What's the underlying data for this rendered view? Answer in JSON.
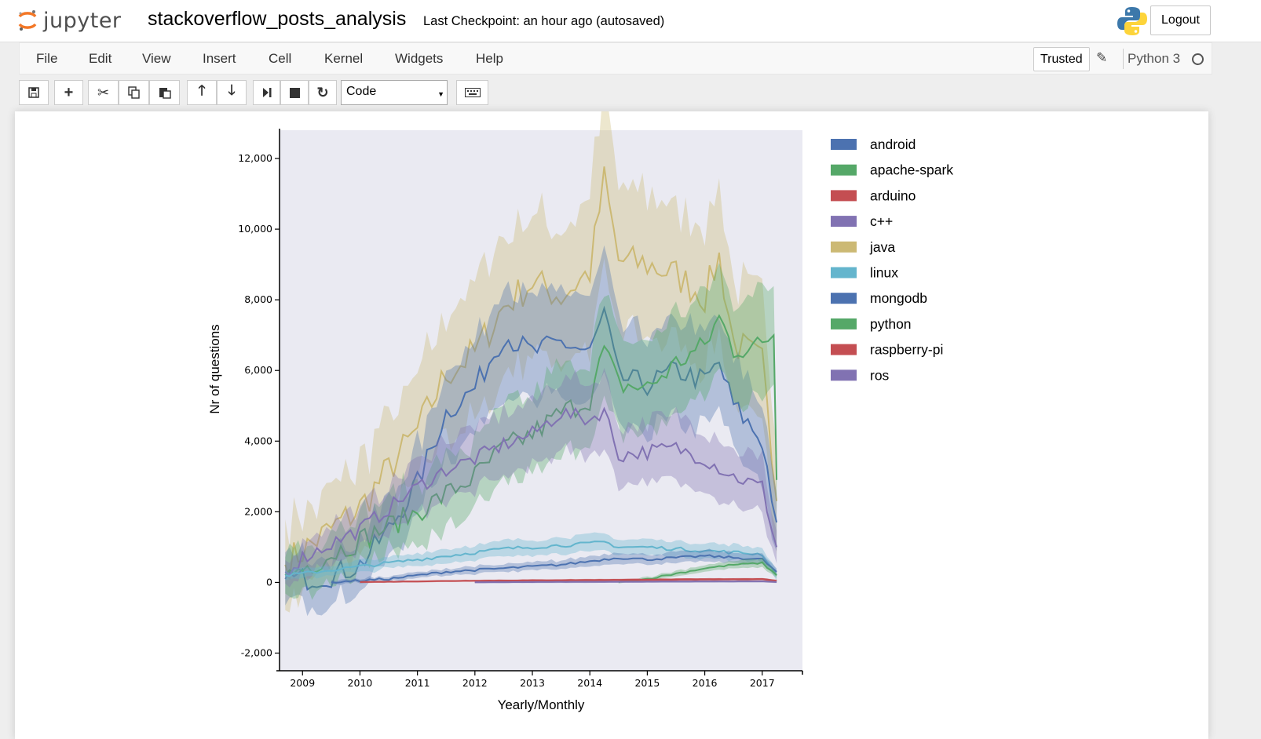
{
  "app": {
    "logo_text": "jupyter",
    "notebook_name": "stackoverflow_posts_analysis",
    "checkpoint": "Last Checkpoint: an hour ago (autosaved)",
    "logout_label": "Logout"
  },
  "menu": [
    "File",
    "Edit",
    "View",
    "Insert",
    "Cell",
    "Kernel",
    "Widgets",
    "Help"
  ],
  "kernel": {
    "trusted_label": "Trusted",
    "name": "Python 3"
  },
  "toolbar": {
    "cell_type": "Code",
    "buttons": [
      "save-icon",
      "plus-icon",
      "cut-icon",
      "copy-icon",
      "paste-icon",
      "arrow-up-icon",
      "arrow-down-icon",
      "run-icon",
      "stop-icon",
      "restart-icon",
      "keyboard-icon"
    ]
  },
  "chart_data": {
    "type": "line",
    "xlabel": "Yearly/Monthly",
    "ylabel": "Nr of questions",
    "x_ticks": [
      "2009",
      "2010",
      "2011",
      "2012",
      "2013",
      "2014",
      "2015",
      "2016",
      "2017"
    ],
    "y_ticks": [
      "-2,000",
      "0",
      "2,000",
      "4,000",
      "6,000",
      "8,000",
      "10,000",
      "12,000"
    ],
    "xlim": [
      2008.6,
      2017.7
    ],
    "ylim": [
      -2500,
      12800
    ],
    "legend_position": "right",
    "grid": false,
    "background": "#eaeaf2",
    "band": "confidence band shaded around each series",
    "series": [
      {
        "name": "android",
        "color": "#4c72b0",
        "x": [
          2008.7,
          2009.0,
          2009.5,
          2010.0,
          2010.5,
          2011.0,
          2011.5,
          2012.0,
          2012.5,
          2013.0,
          2013.5,
          2014.0,
          2014.25,
          2014.5,
          2015.0,
          2015.5,
          2016.0,
          2016.25,
          2016.5,
          2017.0,
          2017.25
        ],
        "y": [
          100,
          100,
          200,
          500,
          1500,
          2800,
          4800,
          5500,
          7000,
          6500,
          6800,
          6500,
          7600,
          5800,
          5600,
          6000,
          5700,
          6200,
          5000,
          4000,
          1700
        ]
      },
      {
        "name": "apache-spark",
        "color": "#55a868",
        "x": [
          2014.5,
          2015.0,
          2015.5,
          2016.0,
          2016.5,
          2017.0,
          2017.25
        ],
        "y": [
          10,
          100,
          250,
          400,
          500,
          550,
          200
        ]
      },
      {
        "name": "arduino",
        "color": "#c44e52",
        "x": [
          2010.0,
          2011.0,
          2012.0,
          2013.0,
          2014.0,
          2015.0,
          2016.0,
          2017.0,
          2017.25
        ],
        "y": [
          10,
          30,
          50,
          60,
          70,
          80,
          90,
          100,
          50
        ]
      },
      {
        "name": "c++",
        "color": "#8172b2",
        "x": [
          2008.7,
          2009.0,
          2009.5,
          2010.0,
          2010.5,
          2011.0,
          2011.5,
          2012.0,
          2012.5,
          2013.0,
          2013.5,
          2014.0,
          2014.25,
          2014.5,
          2015.0,
          2015.5,
          2016.0,
          2016.5,
          2017.0,
          2017.25
        ],
        "y": [
          300,
          700,
          1100,
          1500,
          2100,
          2700,
          3200,
          3500,
          3900,
          4200,
          4800,
          4600,
          4900,
          3600,
          3700,
          3800,
          3500,
          3000,
          2700,
          1000
        ]
      },
      {
        "name": "java",
        "color": "#ccb974",
        "x": [
          2008.7,
          2009.0,
          2009.5,
          2010.0,
          2010.5,
          2011.0,
          2011.5,
          2012.0,
          2012.5,
          2013.0,
          2013.5,
          2014.0,
          2014.25,
          2014.5,
          2015.0,
          2015.5,
          2016.0,
          2016.25,
          2016.5,
          2017.0,
          2017.25
        ],
        "y": [
          500,
          900,
          1500,
          2100,
          3200,
          4300,
          5900,
          6500,
          7800,
          8500,
          8100,
          8800,
          11400,
          9100,
          9000,
          8700,
          8100,
          9200,
          6800,
          6200,
          2300
        ]
      },
      {
        "name": "linux",
        "color": "#64b5cd",
        "x": [
          2008.7,
          2009.0,
          2009.5,
          2010.0,
          2010.5,
          2011.0,
          2011.5,
          2012.0,
          2012.5,
          2013.0,
          2013.5,
          2014.0,
          2014.25,
          2014.5,
          2015.0,
          2015.5,
          2016.0,
          2016.5,
          2017.0,
          2017.25
        ],
        "y": [
          200,
          250,
          350,
          450,
          550,
          650,
          750,
          850,
          950,
          1000,
          1050,
          1100,
          1150,
          1000,
          1000,
          950,
          900,
          850,
          800,
          200
        ]
      },
      {
        "name": "mongodb",
        "color": "#4c72b0",
        "x": [
          2009.5,
          2010.0,
          2010.5,
          2011.0,
          2011.5,
          2012.0,
          2012.5,
          2013.0,
          2013.5,
          2014.0,
          2014.5,
          2015.0,
          2015.5,
          2016.0,
          2016.5,
          2017.0,
          2017.25
        ],
        "y": [
          10,
          50,
          100,
          200,
          300,
          350,
          400,
          450,
          500,
          600,
          700,
          650,
          700,
          750,
          700,
          650,
          300
        ]
      },
      {
        "name": "python",
        "color": "#55a868",
        "x": [
          2008.7,
          2009.0,
          2009.5,
          2010.0,
          2010.5,
          2011.0,
          2011.5,
          2012.0,
          2012.5,
          2013.0,
          2013.5,
          2014.0,
          2014.25,
          2014.5,
          2015.0,
          2015.5,
          2016.0,
          2016.25,
          2016.5,
          2017.0,
          2017.2,
          2017.25
        ],
        "y": [
          200,
          400,
          800,
          1200,
          1600,
          2000,
          2500,
          3000,
          3800,
          4200,
          4800,
          5200,
          6600,
          5600,
          5500,
          6200,
          6700,
          7500,
          6600,
          6700,
          7100,
          2900
        ]
      },
      {
        "name": "raspberry-pi",
        "color": "#c44e52",
        "x": [
          2012.0,
          2013.0,
          2014.0,
          2015.0,
          2016.0,
          2017.0,
          2017.25
        ],
        "y": [
          10,
          40,
          60,
          70,
          80,
          90,
          40
        ]
      },
      {
        "name": "ros",
        "color": "#8172b2",
        "x": [
          2012.0,
          2013.0,
          2014.0,
          2015.0,
          2016.0,
          2017.0,
          2017.25
        ],
        "y": [
          5,
          10,
          15,
          20,
          25,
          30,
          10
        ]
      }
    ]
  }
}
